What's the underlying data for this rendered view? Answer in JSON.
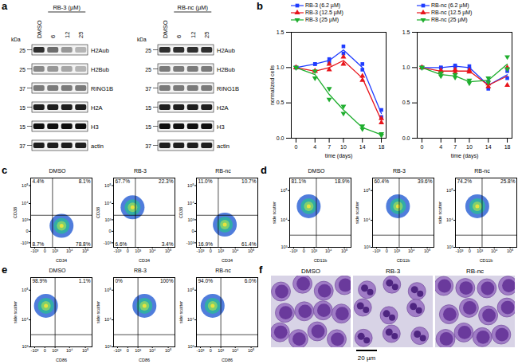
{
  "panel_a": {
    "label": "a",
    "unit": "kDa",
    "blots": [
      {
        "treatment": "RB-3 (µM)",
        "lanes": [
          "DMSO",
          "6",
          "12",
          "25"
        ],
        "bands": [
          {
            "name": "H2Aub",
            "kDa": 25,
            "intensity": [
              0.85,
              0.65,
              0.5,
              0.4
            ]
          },
          {
            "name": "H2Bub",
            "kDa": 25,
            "intensity": [
              0.55,
              0.5,
              0.45,
              0.4
            ]
          },
          {
            "name": "RING1B",
            "kDa": 37,
            "intensity": [
              0.6,
              0.6,
              0.6,
              0.6
            ]
          },
          {
            "name": "H2A",
            "kDa": 15,
            "intensity": [
              0.9,
              0.9,
              0.9,
              0.9
            ]
          },
          {
            "name": "H3",
            "kDa": 15,
            "intensity": [
              0.95,
              0.95,
              0.95,
              0.95
            ]
          },
          {
            "name": "actin",
            "kDa": 37,
            "intensity": [
              0.9,
              0.9,
              0.9,
              0.9
            ]
          }
        ]
      },
      {
        "treatment": "RB-nc (µM)",
        "lanes": [
          "DMSO",
          "6",
          "12",
          "25"
        ],
        "bands": [
          {
            "name": "H2Aub",
            "kDa": 25,
            "intensity": [
              0.85,
              0.85,
              0.85,
              0.85
            ]
          },
          {
            "name": "H2Bub",
            "kDa": 25,
            "intensity": [
              0.6,
              0.6,
              0.6,
              0.6
            ]
          },
          {
            "name": "RING1B",
            "kDa": 37,
            "intensity": [
              0.6,
              0.6,
              0.6,
              0.6
            ]
          },
          {
            "name": "H2A",
            "kDa": 15,
            "intensity": [
              0.9,
              0.9,
              0.9,
              0.9
            ]
          },
          {
            "name": "H3",
            "kDa": 15,
            "intensity": [
              0.95,
              0.95,
              0.95,
              0.95
            ]
          },
          {
            "name": "actin",
            "kDa": 37,
            "intensity": [
              0.9,
              0.9,
              0.9,
              0.9
            ]
          }
        ]
      }
    ]
  },
  "panel_b_label": "b",
  "chart_data": [
    {
      "type": "line",
      "xlabel": "time (days)",
      "ylabel": "normalized cells",
      "x": [
        0,
        4,
        7,
        10,
        14,
        18
      ],
      "xlim": [
        -1,
        19
      ],
      "xticks": [
        0,
        4,
        7,
        10,
        14,
        18
      ],
      "ylim": [
        0,
        1.5
      ],
      "yticks": [
        {
          "value": 0,
          "label": "0.0"
        },
        0.5,
        {
          "value": 1,
          "label": "1.0"
        },
        1.5
      ],
      "series": [
        {
          "name": "RB-3 (6.2 µM)",
          "color": "#1f3cff",
          "marker": "square",
          "values": [
            1.0,
            1.05,
            1.1,
            1.25,
            1.0,
            0.35
          ],
          "replicates": [
            [
              1.0,
              1.0
            ],
            [
              1.05,
              1.05
            ],
            [
              1.12,
              1.08
            ],
            [
              1.2,
              1.3
            ],
            [
              1.05,
              0.97
            ],
            [
              0.4,
              0.3
            ]
          ]
        },
        {
          "name": "RB-3 (12.5 µM)",
          "color": "#e8141b",
          "marker": "triangle",
          "values": [
            1.0,
            0.95,
            1.0,
            1.1,
            0.85,
            0.25
          ],
          "replicates": [
            [
              1.0,
              1.0
            ],
            [
              0.95,
              0.95
            ],
            [
              1.05,
              0.97
            ],
            [
              1.15,
              1.05
            ],
            [
              0.88,
              0.82
            ],
            [
              0.28,
              0.22
            ]
          ]
        },
        {
          "name": "RB-3 (25 µM)",
          "color": "#1fae2e",
          "marker": "triangle-down",
          "values": [
            1.0,
            0.9,
            0.62,
            0.4,
            0.15,
            0.05
          ],
          "replicates": [
            [
              1.0,
              1.0
            ],
            [
              0.95,
              0.85
            ],
            [
              0.7,
              0.55
            ],
            [
              0.45,
              0.35
            ],
            [
              0.17,
              0.13
            ],
            [
              0.06,
              0.04
            ]
          ]
        }
      ]
    },
    {
      "type": "line",
      "xlabel": "time (days)",
      "x": [
        0,
        4,
        7,
        10,
        14,
        18
      ],
      "xlim": [
        -1,
        19
      ],
      "xticks": [
        0,
        4,
        7,
        10,
        14,
        18
      ],
      "ylim": [
        0,
        1.5
      ],
      "yticks": [
        {
          "value": 0,
          "label": "0.0"
        },
        0.5,
        {
          "value": 1,
          "label": "1.0"
        },
        1.5
      ],
      "series": [
        {
          "name": "RB-nc (6.2 µM)",
          "color": "#1f3cff",
          "marker": "square",
          "values": [
            1.0,
            1.0,
            1.02,
            1.0,
            0.75,
            0.9
          ],
          "replicates": [
            [
              1.0,
              1.0
            ],
            [
              1.0,
              1.0
            ],
            [
              1.03,
              1.01
            ],
            [
              1.02,
              0.98
            ],
            [
              0.8,
              0.7
            ],
            [
              0.85,
              0.95
            ]
          ]
        },
        {
          "name": "RB-nc (12.5 µM)",
          "color": "#e8141b",
          "marker": "triangle",
          "values": [
            1.0,
            0.95,
            0.95,
            0.95,
            0.75,
            0.88
          ],
          "replicates": [
            [
              1.0,
              1.0
            ],
            [
              0.96,
              0.94
            ],
            [
              0.97,
              0.93
            ],
            [
              0.96,
              0.94
            ],
            [
              0.77,
              0.73
            ],
            [
              0.75,
              1.0
            ]
          ]
        },
        {
          "name": "RB-nc (25 µM)",
          "color": "#1fae2e",
          "marker": "triangle-down",
          "values": [
            1.0,
            0.9,
            0.88,
            0.8,
            0.82,
            1.05
          ],
          "replicates": [
            [
              1.0,
              1.0
            ],
            [
              0.92,
              0.88
            ],
            [
              0.9,
              0.86
            ],
            [
              0.82,
              0.78
            ],
            [
              0.85,
              0.79
            ],
            [
              1.15,
              0.98
            ]
          ]
        }
      ]
    }
  ],
  "flow": [
    {
      "label": "c",
      "type": "scatter",
      "xlabel": "CD34",
      "ylabel": "CD38",
      "xlim": [
        -2000,
        262144
      ],
      "ylim": [
        -2000,
        262144
      ],
      "xticks": [
        {
          "value": -1000,
          "label": "-10³"
        },
        0,
        {
          "value": 1000,
          "label": "10³"
        },
        {
          "value": 10000,
          "label": "10⁴"
        },
        {
          "value": 100000,
          "label": "10⁵"
        }
      ],
      "yticks": [
        {
          "value": -1000,
          "label": "-10³"
        },
        0,
        {
          "value": 1000,
          "label": "10³"
        },
        {
          "value": 10000,
          "label": "10⁴"
        },
        {
          "value": 100000,
          "label": "10⁵"
        }
      ],
      "gate": {
        "x": 600,
        "y": 2000
      },
      "plots": [
        {
          "title": "DMSO",
          "population": {
            "x": 3000,
            "y": 300
          },
          "quadrants": {
            "top_left": {
              "value": 4.4,
              "label": "4.4%"
            },
            "top_right": {
              "value": 8.1,
              "label": "8.1%"
            },
            "bottom_left": {
              "value": 8.7,
              "label": "8.7%"
            },
            "bottom_right": {
              "value": 78.8,
              "label": "78.8%"
            }
          }
        },
        {
          "title": "RB-3",
          "population": {
            "x": 300,
            "y": 6000
          },
          "quadrants": {
            "top_left": {
              "value": 67.7,
              "label": "67.7%"
            },
            "top_right": {
              "value": 22.3,
              "label": "22.3%"
            },
            "bottom_left": {
              "value": 6.6,
              "label": "6.6%"
            },
            "bottom_right": {
              "value": 3.4,
              "label": "3.4%"
            }
          }
        },
        {
          "title": "RB-nc",
          "population": {
            "x": 2000,
            "y": 400
          },
          "quadrants": {
            "top_left": {
              "value": 11.0,
              "label": "11.0%"
            },
            "top_right": {
              "value": 10.7,
              "label": "10.7%"
            },
            "bottom_left": {
              "value": 16.9,
              "label": "16.9%"
            },
            "bottom_right": {
              "value": 61.4,
              "label": "61.4%"
            }
          }
        }
      ]
    },
    {
      "label": "d",
      "type": "scatter",
      "xlabel": "CD11b",
      "ylabel": "side scatter",
      "xlim": [
        -2000,
        262144
      ],
      "ylim": [
        1000,
        262144
      ],
      "xticks": [
        {
          "value": -1000,
          "label": "-10³"
        },
        0,
        {
          "value": 1000,
          "label": "10³"
        },
        {
          "value": 10000,
          "label": "10⁴"
        },
        {
          "value": 100000,
          "label": "10⁵"
        }
      ],
      "yticks": [
        {
          "value": 1000,
          "label": "10³"
        },
        {
          "value": 10000,
          "label": "10⁴"
        },
        {
          "value": 100000,
          "label": "10⁵"
        }
      ],
      "gate": {
        "x": 1500,
        "y": 3000
      },
      "plots": [
        {
          "title": "DMSO",
          "population": {
            "x": 300,
            "y": 30000
          },
          "quadrants": {
            "top_left": {
              "value": 81.1,
              "label": "81.1%"
            },
            "top_right": {
              "value": 18.9,
              "label": "18.9%"
            }
          }
        },
        {
          "title": "RB-3",
          "population": {
            "x": 1200,
            "y": 30000
          },
          "quadrants": {
            "top_left": {
              "value": 60.4,
              "label": "60.4%"
            },
            "top_right": {
              "value": 39.6,
              "label": "39.6%"
            }
          }
        },
        {
          "title": "RB-nc",
          "population": {
            "x": 600,
            "y": 30000
          },
          "quadrants": {
            "top_left": {
              "value": 74.2,
              "label": "74.2%"
            },
            "top_right": {
              "value": 25.8,
              "label": "25.8%"
            }
          }
        }
      ]
    },
    {
      "label": "e",
      "type": "scatter",
      "xlabel": "CD86",
      "ylabel": "side scatter",
      "xlim": [
        -2000,
        262144
      ],
      "ylim": [
        1000,
        262144
      ],
      "xticks": [
        {
          "value": -1000,
          "label": "-10³"
        },
        0,
        {
          "value": 1000,
          "label": "10³"
        },
        {
          "value": 10000,
          "label": "10⁴"
        },
        {
          "value": 100000,
          "label": "10⁵"
        }
      ],
      "yticks": [
        {
          "value": 1000,
          "label": "10³"
        },
        {
          "value": 10000,
          "label": "10⁴"
        },
        {
          "value": 100000,
          "label": "10⁵"
        }
      ],
      "gate": {
        "x": 1000,
        "y": 3000
      },
      "plots": [
        {
          "title": "DMSO",
          "population": {
            "x": 50,
            "y": 30000
          },
          "quadrants": {
            "top_left": {
              "value": 98.9,
              "label": "98.9%"
            },
            "top_right": {
              "value": 1.1,
              "label": "1.1%"
            }
          }
        },
        {
          "title": "RB-3",
          "population": {
            "x": 3000,
            "y": 30000
          },
          "quadrants": {
            "top_left": {
              "value": 0,
              "label": "0%"
            },
            "top_right": {
              "value": 100,
              "label": "100%"
            }
          }
        },
        {
          "title": "RB-nc",
          "population": {
            "x": 100,
            "y": 30000
          },
          "quadrants": {
            "top_left": {
              "value": 94.0,
              "label": "94.0%"
            },
            "top_right": {
              "value": 6.0,
              "label": "6.0%"
            }
          }
        }
      ]
    }
  ],
  "panel_f": {
    "label": "f",
    "titles": [
      "DMSO",
      "RB-3",
      "RB-nc"
    ],
    "scale_bar": "20 µm"
  }
}
